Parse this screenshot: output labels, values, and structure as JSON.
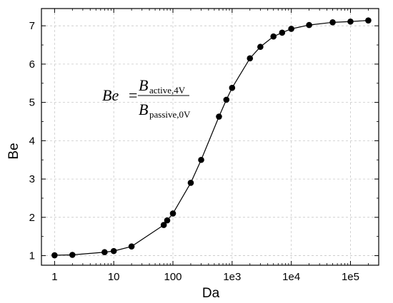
{
  "chart_data": {
    "type": "scatter",
    "title": "",
    "xlabel": "Da",
    "ylabel": "Be",
    "x_scale": "log",
    "xlim": [
      0.6,
      300000
    ],
    "ylim": [
      0.75,
      7.45
    ],
    "x_ticks": [
      {
        "value": 1,
        "label": "1"
      },
      {
        "value": 10,
        "label": "10"
      },
      {
        "value": 100,
        "label": "100"
      },
      {
        "value": 1000,
        "label": "1e3"
      },
      {
        "value": 10000,
        "label": "1e4"
      },
      {
        "value": 100000,
        "label": "1e5"
      }
    ],
    "y_ticks": [
      {
        "value": 1,
        "label": "1"
      },
      {
        "value": 2,
        "label": "2"
      },
      {
        "value": 3,
        "label": "3"
      },
      {
        "value": 4,
        "label": "4"
      },
      {
        "value": 5,
        "label": "5"
      },
      {
        "value": 6,
        "label": "6"
      },
      {
        "value": 7,
        "label": "7"
      }
    ],
    "grid": true,
    "legend": "none",
    "marker_color": "#000000",
    "series": [
      {
        "x": [
          1,
          2,
          7,
          10,
          20,
          70,
          80,
          100,
          200,
          300,
          600,
          800,
          1000,
          2000,
          3000,
          5000,
          7000,
          10000,
          20000,
          50000,
          100000,
          200000
        ],
        "values": [
          1.01,
          1.02,
          1.09,
          1.12,
          1.24,
          1.8,
          1.92,
          2.1,
          2.9,
          3.5,
          4.63,
          5.07,
          5.38,
          6.15,
          6.45,
          6.72,
          6.82,
          6.92,
          7.02,
          7.09,
          7.11,
          7.14
        ]
      }
    ],
    "annotation": {
      "lhs": "Be",
      "equals": "=",
      "numerator": "B",
      "numerator_sub": "active,4V",
      "denominator": "B",
      "denominator_sub": "passive,0V"
    }
  }
}
